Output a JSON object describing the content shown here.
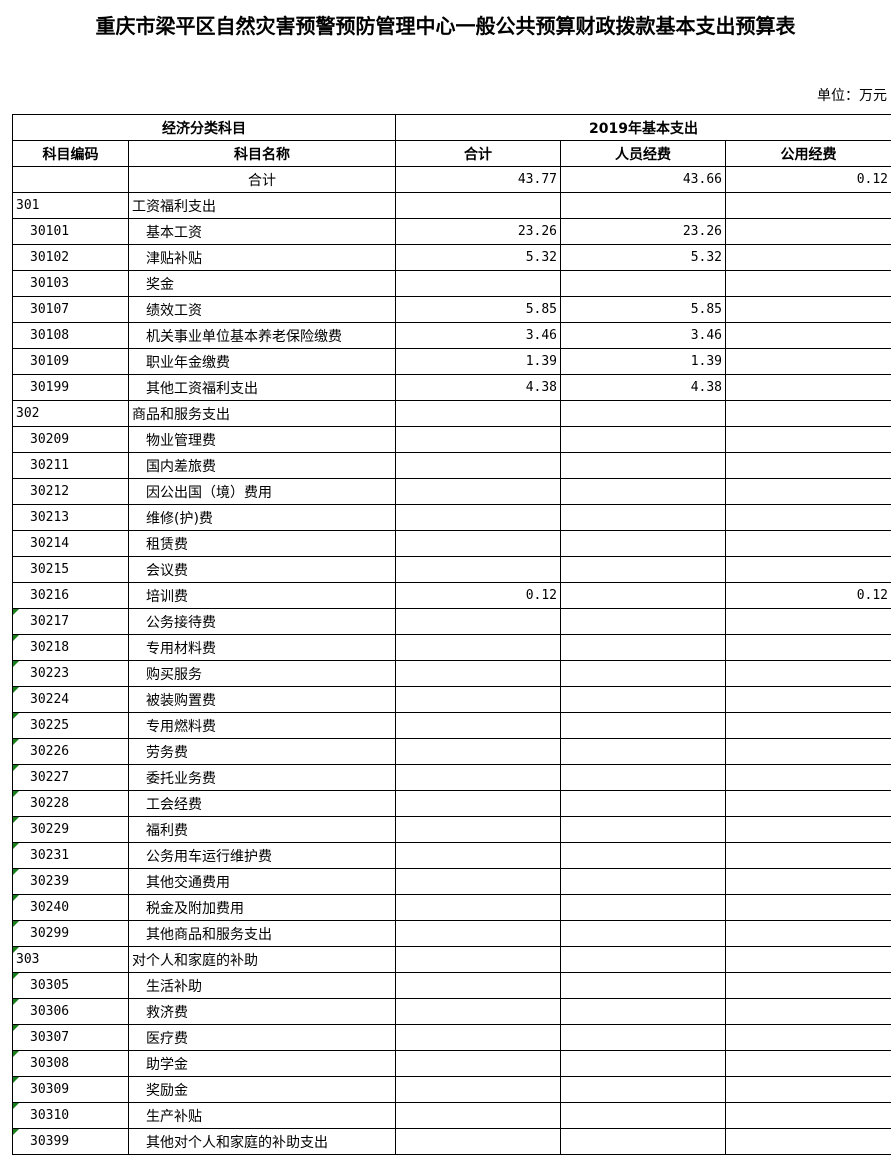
{
  "title": "重庆市梁平区自然灾害预警预防管理中心一般公共预算财政拨款基本支出预算表",
  "unit": "单位：万元",
  "header": {
    "group1": "经济分类科目",
    "group2": "2019年基本支出",
    "code": "科目编码",
    "name": "科目名称",
    "total": "合计",
    "personnel": "人员经费",
    "public": "公用经费"
  },
  "total_row": {
    "name": "合计",
    "total": "43.77",
    "personnel": "43.66",
    "public": "0.12"
  },
  "rows": [
    {
      "code": "301",
      "name": "工资福利支出",
      "level": 1,
      "total": "",
      "personnel": "",
      "public": "",
      "flag": false
    },
    {
      "code": "30101",
      "name": "基本工资",
      "level": 2,
      "total": "23.26",
      "personnel": "23.26",
      "public": "",
      "flag": false
    },
    {
      "code": "30102",
      "name": "津贴补贴",
      "level": 2,
      "total": "5.32",
      "personnel": "5.32",
      "public": "",
      "flag": false
    },
    {
      "code": "30103",
      "name": "奖金",
      "level": 2,
      "total": "",
      "personnel": "",
      "public": "",
      "flag": false
    },
    {
      "code": "30107",
      "name": "绩效工资",
      "level": 2,
      "total": "5.85",
      "personnel": "5.85",
      "public": "",
      "flag": false
    },
    {
      "code": "30108",
      "name": "机关事业单位基本养老保险缴费",
      "level": 2,
      "total": "3.46",
      "personnel": "3.46",
      "public": "",
      "flag": false
    },
    {
      "code": "30109",
      "name": "职业年金缴费",
      "level": 2,
      "total": "1.39",
      "personnel": "1.39",
      "public": "",
      "flag": false
    },
    {
      "code": "30199",
      "name": "其他工资福利支出",
      "level": 2,
      "total": "4.38",
      "personnel": "4.38",
      "public": "",
      "flag": false
    },
    {
      "code": "302",
      "name": "商品和服务支出",
      "level": 1,
      "total": "",
      "personnel": "",
      "public": "",
      "flag": false
    },
    {
      "code": "30209",
      "name": "物业管理费",
      "level": 2,
      "total": "",
      "personnel": "",
      "public": "",
      "flag": false
    },
    {
      "code": "30211",
      "name": "国内差旅费",
      "level": 2,
      "total": "",
      "personnel": "",
      "public": "",
      "flag": false
    },
    {
      "code": "30212",
      "name": "因公出国（境）费用",
      "level": 2,
      "total": "",
      "personnel": "",
      "public": "",
      "flag": false
    },
    {
      "code": "30213",
      "name": "维修(护)费",
      "level": 2,
      "total": "",
      "personnel": "",
      "public": "",
      "flag": false
    },
    {
      "code": "30214",
      "name": "租赁费",
      "level": 2,
      "total": "",
      "personnel": "",
      "public": "",
      "flag": false
    },
    {
      "code": "30215",
      "name": "会议费",
      "level": 2,
      "total": "",
      "personnel": "",
      "public": "",
      "flag": false
    },
    {
      "code": "30216",
      "name": "培训费",
      "level": 2,
      "total": "0.12",
      "personnel": "",
      "public": "0.12",
      "flag": false
    },
    {
      "code": "30217",
      "name": "公务接待费",
      "level": 2,
      "total": "",
      "personnel": "",
      "public": "",
      "flag": true
    },
    {
      "code": "30218",
      "name": "专用材料费",
      "level": 2,
      "total": "",
      "personnel": "",
      "public": "",
      "flag": true
    },
    {
      "code": "30223",
      "name": "购买服务",
      "level": 2,
      "total": "",
      "personnel": "",
      "public": "",
      "flag": true
    },
    {
      "code": "30224",
      "name": "被装购置费",
      "level": 2,
      "total": "",
      "personnel": "",
      "public": "",
      "flag": true
    },
    {
      "code": "30225",
      "name": "专用燃料费",
      "level": 2,
      "total": "",
      "personnel": "",
      "public": "",
      "flag": true
    },
    {
      "code": "30226",
      "name": "劳务费",
      "level": 2,
      "total": "",
      "personnel": "",
      "public": "",
      "flag": true
    },
    {
      "code": "30227",
      "name": "委托业务费",
      "level": 2,
      "total": "",
      "personnel": "",
      "public": "",
      "flag": true
    },
    {
      "code": "30228",
      "name": "工会经费",
      "level": 2,
      "total": "",
      "personnel": "",
      "public": "",
      "flag": true
    },
    {
      "code": "30229",
      "name": "福利费",
      "level": 2,
      "total": "",
      "personnel": "",
      "public": "",
      "flag": true
    },
    {
      "code": "30231",
      "name": "公务用车运行维护费",
      "level": 2,
      "total": "",
      "personnel": "",
      "public": "",
      "flag": true
    },
    {
      "code": "30239",
      "name": "其他交通费用",
      "level": 2,
      "total": "",
      "personnel": "",
      "public": "",
      "flag": true
    },
    {
      "code": "30240",
      "name": "税金及附加费用",
      "level": 2,
      "total": "",
      "personnel": "",
      "public": "",
      "flag": true
    },
    {
      "code": "30299",
      "name": "其他商品和服务支出",
      "level": 2,
      "total": "",
      "personnel": "",
      "public": "",
      "flag": true
    },
    {
      "code": "303",
      "name": "对个人和家庭的补助",
      "level": 1,
      "total": "",
      "personnel": "",
      "public": "",
      "flag": true
    },
    {
      "code": "30305",
      "name": "生活补助",
      "level": 2,
      "total": "",
      "personnel": "",
      "public": "",
      "flag": true
    },
    {
      "code": "30306",
      "name": "救济费",
      "level": 2,
      "total": "",
      "personnel": "",
      "public": "",
      "flag": true
    },
    {
      "code": "30307",
      "name": "医疗费",
      "level": 2,
      "total": "",
      "personnel": "",
      "public": "",
      "flag": true
    },
    {
      "code": "30308",
      "name": "助学金",
      "level": 2,
      "total": "",
      "personnel": "",
      "public": "",
      "flag": true
    },
    {
      "code": "30309",
      "name": "奖励金",
      "level": 2,
      "total": "",
      "personnel": "",
      "public": "",
      "flag": true
    },
    {
      "code": "30310",
      "name": "生产补贴",
      "level": 2,
      "total": "",
      "personnel": "",
      "public": "",
      "flag": true
    },
    {
      "code": "30399",
      "name": "其他对个人和家庭的补助支出",
      "level": 2,
      "total": "",
      "personnel": "",
      "public": "",
      "flag": true
    }
  ],
  "colors": {
    "indicator": "#1a7f1a"
  }
}
